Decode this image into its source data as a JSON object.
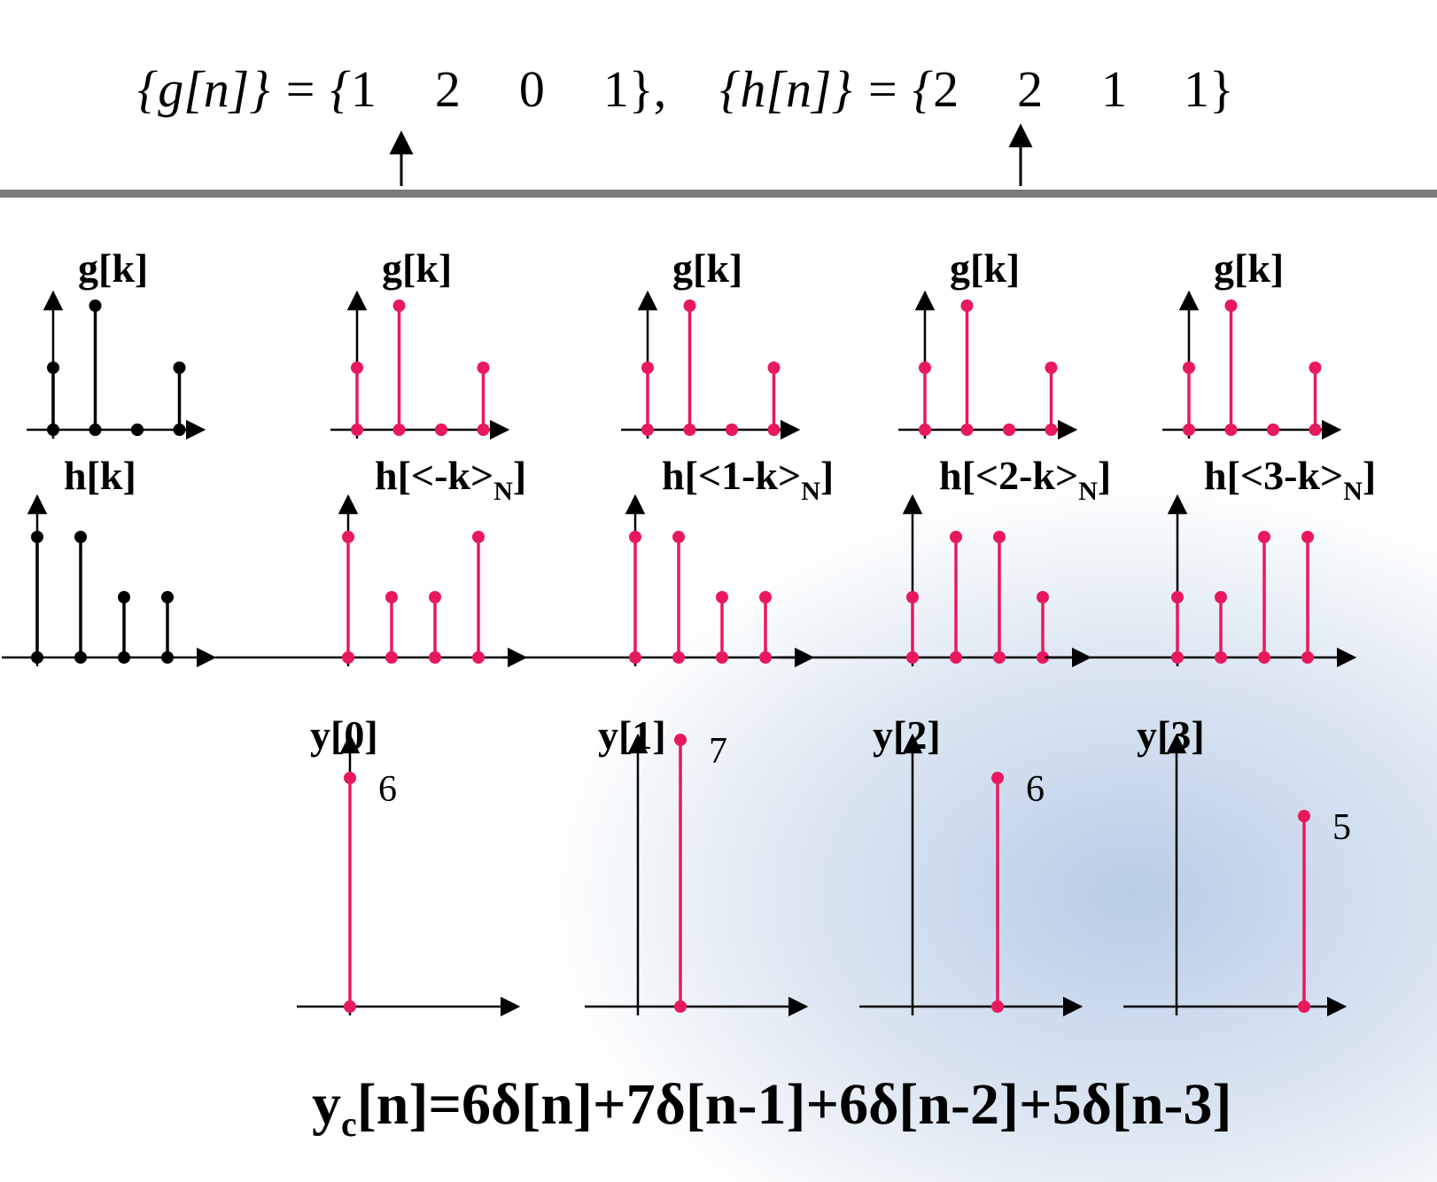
{
  "header": {
    "g": {
      "lhs": "{g[n]} = {",
      "values": [
        1,
        2,
        0,
        1
      ],
      "close": "},"
    },
    "h": {
      "lhs": "{h[n]} = {",
      "values": [
        2,
        2,
        1,
        1
      ],
      "close": "}"
    }
  },
  "rows": [
    {
      "plots": [
        {
          "title": "g[k]",
          "color": "#000000",
          "values": [
            1,
            2,
            0,
            1
          ]
        },
        {
          "title": "g[k]",
          "color": "#e8185f",
          "values": [
            1,
            2,
            0,
            1
          ]
        },
        {
          "title": "g[k]",
          "color": "#e8185f",
          "values": [
            1,
            2,
            0,
            1
          ]
        },
        {
          "title": "g[k]",
          "color": "#e8185f",
          "values": [
            1,
            2,
            0,
            1
          ]
        },
        {
          "title": "g[k]",
          "color": "#e8185f",
          "values": [
            1,
            2,
            0,
            1
          ]
        }
      ]
    },
    {
      "plots": [
        {
          "title": "h[k]",
          "color": "#000000",
          "values": [
            2,
            2,
            1,
            1
          ]
        },
        {
          "title": "h[<-k>",
          "sub": "N",
          "close": "]",
          "color": "#e8185f",
          "values": [
            2,
            1,
            1,
            2
          ]
        },
        {
          "title": "h[<1-k>",
          "sub": "N",
          "close": "]",
          "color": "#e8185f",
          "values": [
            2,
            2,
            1,
            1
          ]
        },
        {
          "title": "h[<2-k>",
          "sub": "N",
          "close": "]",
          "color": "#e8185f",
          "values": [
            1,
            2,
            2,
            1
          ]
        },
        {
          "title": "h[<3-k>",
          "sub": "N",
          "close": "]",
          "color": "#e8185f",
          "values": [
            1,
            1,
            2,
            2
          ]
        }
      ]
    },
    {
      "plots": [
        {
          "title": "y[0]",
          "color": "#e8185f",
          "n": 0,
          "value": 6
        },
        {
          "title": "y[1]",
          "color": "#e8185f",
          "n": 1,
          "value": 7
        },
        {
          "title": "y[2]",
          "color": "#e8185f",
          "n": 2,
          "value": 6
        },
        {
          "title": "y[3]",
          "color": "#e8185f",
          "n": 3,
          "value": 5
        }
      ]
    }
  ],
  "footer": {
    "main": "y",
    "sub": "c",
    "rest": "[n]=6δ[n]+7δ[n-1]+6δ[n-2]+5δ[n-3]"
  }
}
